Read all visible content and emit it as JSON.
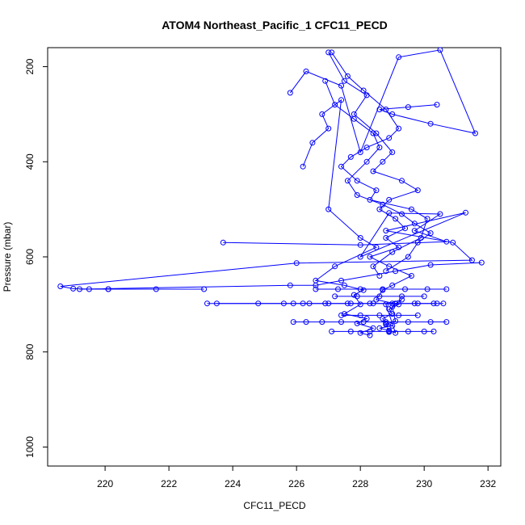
{
  "chart_data": {
    "type": "line",
    "title": "ATOM4 Northeast_Pacific_1 CFC11_PECD",
    "xlabel": "CFC11_PECD",
    "ylabel": "Pressure (mbar)",
    "xlim": [
      218.2,
      232.4
    ],
    "ylim": [
      1040,
      160
    ],
    "y_reversed": true,
    "x_ticks": [
      220,
      222,
      224,
      226,
      228,
      230,
      232
    ],
    "y_ticks": [
      200,
      400,
      600,
      800,
      1000
    ],
    "grid": false,
    "series_color": "#0000ff",
    "series": [
      {
        "x": [
          227.0,
          227.5,
          228.2,
          227.8,
          228.5,
          229.0,
          228.7,
          228.4,
          229.3,
          229.8,
          228.9,
          228.6,
          229.1,
          229.4,
          228.8,
          229.2,
          228.3,
          228.9,
          229.6,
          229.0,
          228.7,
          228.5,
          229.2,
          228.9,
          229.0,
          228.7,
          228.8,
          229.0,
          228.6,
          228.9,
          229.1,
          228.8,
          229.3,
          229.0,
          229.1,
          228.8,
          228.9
        ],
        "y": [
          170,
          230,
          260,
          300,
          340,
          380,
          400,
          420,
          440,
          460,
          480,
          500,
          520,
          540,
          560,
          580,
          600,
          620,
          640,
          660,
          670,
          690,
          700,
          710,
          720,
          730,
          740,
          745,
          750,
          755,
          760,
          700,
          690,
          705,
          735,
          742,
          758
        ]
      },
      {
        "x": [
          226.2,
          226.5,
          227.0,
          226.8,
          227.4,
          227.0,
          228.0,
          228.5,
          227.2,
          226.6,
          227.5,
          228.1,
          227.8,
          228.0,
          227.5,
          228.2,
          227.9,
          228.4,
          228.0,
          228.3
        ],
        "y": [
          410,
          360,
          330,
          300,
          270,
          500,
          560,
          580,
          620,
          650,
          660,
          670,
          680,
          700,
          720,
          730,
          740,
          750,
          760,
          765
        ]
      },
      {
        "x": [
          225.8,
          226.3,
          227.4,
          228.0,
          229.2,
          230.5,
          231.6,
          230.2,
          229.0,
          228.6,
          229.5,
          230.4
        ],
        "y": [
          255,
          210,
          240,
          380,
          180,
          165,
          340,
          320,
          300,
          290,
          285,
          280
        ]
      },
      {
        "x": [
          223.7,
          228.0,
          230.7,
          229.7,
          230.5,
          228.9,
          228.0,
          231.3,
          228.8,
          230.9,
          231.5,
          226.0,
          218.6,
          219.0,
          219.5,
          220.1,
          221.6,
          223.1
        ],
        "y": [
          570,
          575,
          568,
          545,
          510,
          508,
          600,
          507,
          545,
          570,
          607,
          613,
          662,
          667,
          668,
          668,
          668,
          668
        ]
      },
      {
        "x": [
          231.8,
          230.2,
          229.1,
          227.4,
          226.6,
          225.8,
          219.2,
          220.1
        ],
        "y": [
          612,
          617,
          630,
          650,
          660,
          660,
          668,
          668
        ]
      },
      {
        "x": [
          227.1,
          227.6,
          228.1,
          228.8,
          229.2,
          228.9,
          228.2,
          227.7,
          227.4,
          227.9,
          228.5,
          228.3,
          229.6,
          230.1,
          229.9,
          229.0,
          228.4,
          228.6
        ],
        "y": [
          170,
          220,
          250,
          290,
          330,
          350,
          370,
          390,
          410,
          440,
          460,
          480,
          500,
          520,
          560,
          590,
          620,
          640
        ]
      },
      {
        "x": [
          226.9,
          227.2,
          227.8,
          228.4,
          228.6,
          228.2,
          227.6,
          227.9,
          228.7,
          229.3,
          229.7,
          230.2,
          229.8,
          229.5,
          228.8
        ],
        "y": [
          230,
          280,
          310,
          340,
          370,
          400,
          440,
          470,
          490,
          510,
          530,
          550,
          570,
          600,
          630
        ]
      },
      {
        "x": [
          223.5,
          224.8,
          225.6,
          226.2,
          226.9,
          227.6,
          228.3,
          229.0,
          229.7,
          230.4,
          230.6
        ],
        "y": [
          698,
          698,
          698,
          698,
          698,
          698,
          698,
          698,
          698,
          698,
          698
        ]
      },
      {
        "x": [
          223.2,
          225.9,
          226.4,
          227.0,
          227.7,
          228.4,
          229.1,
          229.8,
          230.3
        ],
        "y": [
          698,
          698,
          698,
          698,
          698,
          698,
          698,
          698,
          698
        ]
      },
      {
        "x": [
          226.6,
          227.3,
          228.0,
          228.7,
          229.4,
          230.1,
          230.7
        ],
        "y": [
          668,
          668,
          668,
          668,
          668,
          668,
          668
        ]
      },
      {
        "x": [
          225.9,
          226.3,
          226.8,
          227.4,
          228.1,
          228.8,
          229.5,
          230.2,
          230.7
        ],
        "y": [
          737,
          737,
          737,
          737,
          737,
          737,
          737,
          737,
          737
        ]
      },
      {
        "x": [
          227.1,
          227.7,
          228.3,
          228.9,
          229.5,
          230.0,
          230.3
        ],
        "y": [
          757,
          757,
          757,
          757,
          757,
          757,
          757
        ]
      },
      {
        "x": [
          227.4,
          228.0,
          228.6,
          229.2,
          229.8
        ],
        "y": [
          723,
          723,
          723,
          723,
          723
        ]
      },
      {
        "x": [
          227.2,
          227.9,
          228.6,
          229.3,
          230.0
        ],
        "y": [
          683,
          683,
          683,
          683,
          683
        ]
      }
    ]
  }
}
